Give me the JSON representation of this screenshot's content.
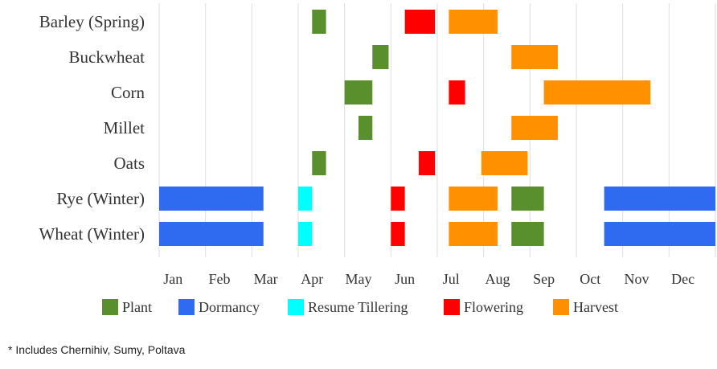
{
  "chart_data": {
    "type": "bar",
    "subtype": "gantt",
    "x_unit": "month",
    "months": [
      "Jan",
      "Feb",
      "Mar",
      "Apr",
      "May",
      "Jun",
      "Jul",
      "Aug",
      "Sep",
      "Oct",
      "Nov",
      "Dec"
    ],
    "xlim": [
      0,
      12
    ],
    "crops": [
      "Barley (Spring)",
      "Buckwheat",
      "Corn",
      "Millet",
      "Oats",
      "Rye (Winter)",
      "Wheat (Winter)"
    ],
    "stages": [
      {
        "name": "Plant",
        "color": "#5a8f2e"
      },
      {
        "name": "Dormancy",
        "color": "#2e6bf0"
      },
      {
        "name": "Resume Tillering",
        "color": "#00ffff"
      },
      {
        "name": "Flowering",
        "color": "#ff0000"
      },
      {
        "name": "Harvest",
        "color": "#ff9100"
      }
    ],
    "tasks": [
      {
        "crop": "Barley (Spring)",
        "stage": "Plant",
        "start": 3.3,
        "end": 3.6
      },
      {
        "crop": "Barley (Spring)",
        "stage": "Flowering",
        "start": 5.3,
        "end": 5.95
      },
      {
        "crop": "Barley (Spring)",
        "stage": "Harvest",
        "start": 6.25,
        "end": 7.3
      },
      {
        "crop": "Buckwheat",
        "stage": "Plant",
        "start": 4.6,
        "end": 4.95
      },
      {
        "crop": "Buckwheat",
        "stage": "Harvest",
        "start": 7.6,
        "end": 8.6
      },
      {
        "crop": "Corn",
        "stage": "Plant",
        "start": 4.0,
        "end": 4.6
      },
      {
        "crop": "Corn",
        "stage": "Flowering",
        "start": 6.25,
        "end": 6.6
      },
      {
        "crop": "Corn",
        "stage": "Harvest",
        "start": 8.3,
        "end": 10.6
      },
      {
        "crop": "Millet",
        "stage": "Plant",
        "start": 4.3,
        "end": 4.6
      },
      {
        "crop": "Millet",
        "stage": "Harvest",
        "start": 7.6,
        "end": 8.6
      },
      {
        "crop": "Oats",
        "stage": "Plant",
        "start": 3.3,
        "end": 3.6
      },
      {
        "crop": "Oats",
        "stage": "Flowering",
        "start": 5.6,
        "end": 5.95
      },
      {
        "crop": "Oats",
        "stage": "Harvest",
        "start": 6.95,
        "end": 7.95
      },
      {
        "crop": "Rye (Winter)",
        "stage": "Dormancy",
        "start": 0,
        "end": 2.25
      },
      {
        "crop": "Rye (Winter)",
        "stage": "Resume Tillering",
        "start": 3.0,
        "end": 3.3
      },
      {
        "crop": "Rye (Winter)",
        "stage": "Flowering",
        "start": 5.0,
        "end": 5.3
      },
      {
        "crop": "Rye (Winter)",
        "stage": "Harvest",
        "start": 6.25,
        "end": 7.3
      },
      {
        "crop": "Rye (Winter)",
        "stage": "Plant",
        "start": 7.6,
        "end": 8.3
      },
      {
        "crop": "Rye (Winter)",
        "stage": "Dormancy",
        "start": 9.6,
        "end": 12.0
      },
      {
        "crop": "Wheat (Winter)",
        "stage": "Dormancy",
        "start": 0,
        "end": 2.25
      },
      {
        "crop": "Wheat (Winter)",
        "stage": "Resume Tillering",
        "start": 3.0,
        "end": 3.3
      },
      {
        "crop": "Wheat (Winter)",
        "stage": "Flowering",
        "start": 5.0,
        "end": 5.3
      },
      {
        "crop": "Wheat (Winter)",
        "stage": "Harvest",
        "start": 6.25,
        "end": 7.3
      },
      {
        "crop": "Wheat (Winter)",
        "stage": "Plant",
        "start": 7.6,
        "end": 8.3
      },
      {
        "crop": "Wheat (Winter)",
        "stage": "Dormancy",
        "start": 9.6,
        "end": 12.0
      }
    ],
    "grid": true,
    "legend_position": "bottom"
  },
  "footnote": "* Includes Chernihiv, Sumy, Poltava"
}
